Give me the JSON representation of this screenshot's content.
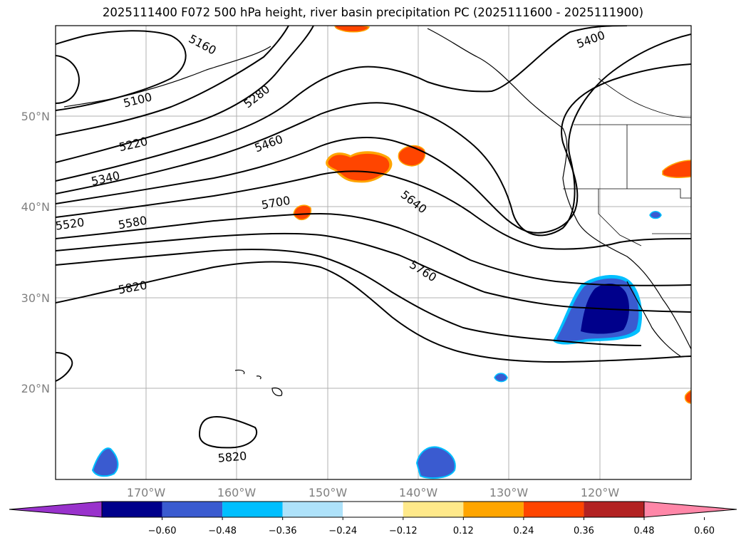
{
  "title": "2025111400 F072 500 hPa height, river basin precipitation PC (2025111600 - 2025111900)",
  "lat_labels": [
    "50°N",
    "40°N",
    "30°N",
    "20°N"
  ],
  "lon_labels": [
    "170°W",
    "160°W",
    "150°W",
    "140°W",
    "130°W",
    "120°W"
  ],
  "contour_labels": [
    "5160",
    "5100",
    "5280",
    "5220",
    "5460",
    "5340",
    "5700",
    "5640",
    "5520",
    "5580",
    "5760",
    "5820",
    "5400",
    "5820"
  ],
  "colorbar": {
    "colors": [
      "#9932cc",
      "#00008b",
      "#3a5bd0",
      "#00bfff",
      "#aee2fa",
      "#ffffff",
      "#ffe98a",
      "#ffa500",
      "#ff4500",
      "#b22222",
      "#ff87a8"
    ],
    "tick_labels": [
      "−0.60",
      "−0.48",
      "−0.36",
      "−0.24",
      "−0.12",
      "0.12",
      "0.24",
      "0.36",
      "0.48",
      "0.60"
    ]
  }
}
